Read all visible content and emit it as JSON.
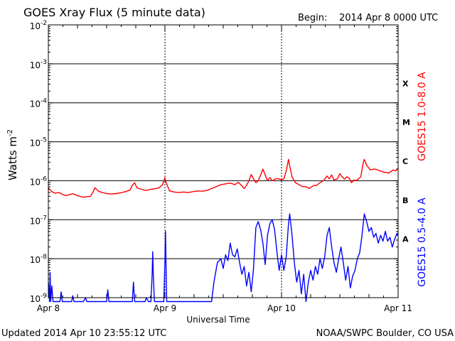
{
  "header": {
    "title": "GOES Xray Flux (5 minute data)",
    "begin_label": "Begin:",
    "begin_value": "2014 Apr 8 0000 UTC"
  },
  "footer": {
    "updated": "Updated 2014 Apr 10 23:55:12 UTC",
    "credit": "NOAA/SWPC Boulder, CO USA"
  },
  "colors": {
    "long_channel": "#ff0000",
    "short_channel": "#0000ff",
    "grid": "#000000",
    "background": "#ffffff"
  },
  "chart_data": {
    "type": "line",
    "title": "GOES Xray Flux (5 minute data)",
    "xlabel": "Universal Time",
    "ylabel": "Watts m",
    "ylabel_superscript": "-2",
    "yscale": "log",
    "ylim_exponent": [
      -9,
      -2
    ],
    "ytick_labels": [
      {
        "exp": -2,
        "base": "10",
        "sup": "-2"
      },
      {
        "exp": -3,
        "base": "10",
        "sup": "-3"
      },
      {
        "exp": -4,
        "base": "10",
        "sup": "-4"
      },
      {
        "exp": -5,
        "base": "10",
        "sup": "-5"
      },
      {
        "exp": -6,
        "base": "10",
        "sup": "-6"
      },
      {
        "exp": -7,
        "base": "10",
        "sup": "-7"
      },
      {
        "exp": -8,
        "base": "10",
        "sup": "-8"
      },
      {
        "exp": -9,
        "base": "10",
        "sup": "-9"
      }
    ],
    "xlim_days": [
      0,
      3
    ],
    "xtick_labels": [
      {
        "day": 0,
        "label": "Apr 8"
      },
      {
        "day": 1,
        "label": "Apr 9"
      },
      {
        "day": 2,
        "label": "Apr 10"
      },
      {
        "day": 3,
        "label": "Apr 11"
      }
    ],
    "flare_classes": [
      {
        "label": "X",
        "exp": -3.5
      },
      {
        "label": "M",
        "exp": -4.5
      },
      {
        "label": "C",
        "exp": -5.5
      },
      {
        "label": "B",
        "exp": -6.5
      },
      {
        "label": "A",
        "exp": -7.5
      }
    ],
    "series": [
      {
        "name": "GOES15 1.0-8.0 A",
        "color": "#ff0000",
        "points": [
          [
            0.0,
            -6.18
          ],
          [
            0.03,
            -6.28
          ],
          [
            0.06,
            -6.32
          ],
          [
            0.09,
            -6.3
          ],
          [
            0.12,
            -6.35
          ],
          [
            0.15,
            -6.38
          ],
          [
            0.18,
            -6.36
          ],
          [
            0.21,
            -6.33
          ],
          [
            0.24,
            -6.37
          ],
          [
            0.27,
            -6.4
          ],
          [
            0.3,
            -6.42
          ],
          [
            0.33,
            -6.41
          ],
          [
            0.36,
            -6.4
          ],
          [
            0.38,
            -6.31
          ],
          [
            0.4,
            -6.18
          ],
          [
            0.43,
            -6.27
          ],
          [
            0.46,
            -6.3
          ],
          [
            0.5,
            -6.33
          ],
          [
            0.54,
            -6.34
          ],
          [
            0.58,
            -6.33
          ],
          [
            0.62,
            -6.31
          ],
          [
            0.66,
            -6.28
          ],
          [
            0.7,
            -6.24
          ],
          [
            0.72,
            -6.12
          ],
          [
            0.74,
            -6.05
          ],
          [
            0.76,
            -6.18
          ],
          [
            0.8,
            -6.22
          ],
          [
            0.84,
            -6.25
          ],
          [
            0.88,
            -6.22
          ],
          [
            0.92,
            -6.2
          ],
          [
            0.95,
            -6.18
          ],
          [
            0.98,
            -6.1
          ],
          [
            1.0,
            -5.92
          ],
          [
            1.01,
            -6.05
          ],
          [
            1.04,
            -6.26
          ],
          [
            1.08,
            -6.29
          ],
          [
            1.12,
            -6.3
          ],
          [
            1.16,
            -6.29
          ],
          [
            1.2,
            -6.3
          ],
          [
            1.24,
            -6.28
          ],
          [
            1.28,
            -6.26
          ],
          [
            1.32,
            -6.27
          ],
          [
            1.36,
            -6.25
          ],
          [
            1.4,
            -6.2
          ],
          [
            1.44,
            -6.15
          ],
          [
            1.48,
            -6.1
          ],
          [
            1.52,
            -6.08
          ],
          [
            1.56,
            -6.06
          ],
          [
            1.6,
            -6.1
          ],
          [
            1.63,
            -6.04
          ],
          [
            1.66,
            -6.13
          ],
          [
            1.68,
            -6.2
          ],
          [
            1.7,
            -6.12
          ],
          [
            1.72,
            -6.0
          ],
          [
            1.74,
            -5.84
          ],
          [
            1.76,
            -5.95
          ],
          [
            1.78,
            -6.05
          ],
          [
            1.8,
            -6.0
          ],
          [
            1.82,
            -5.86
          ],
          [
            1.84,
            -5.7
          ],
          [
            1.86,
            -5.85
          ],
          [
            1.88,
            -6.0
          ],
          [
            1.9,
            -5.92
          ],
          [
            1.92,
            -6.0
          ],
          [
            1.95,
            -5.95
          ],
          [
            1.98,
            -5.95
          ],
          [
            2.0,
            -5.98
          ],
          [
            2.02,
            -5.95
          ],
          [
            2.04,
            -5.75
          ],
          [
            2.06,
            -5.45
          ],
          [
            2.07,
            -5.62
          ],
          [
            2.09,
            -5.9
          ],
          [
            2.12,
            -6.05
          ],
          [
            2.15,
            -6.1
          ],
          [
            2.18,
            -6.15
          ],
          [
            2.21,
            -6.15
          ],
          [
            2.24,
            -6.2
          ],
          [
            2.26,
            -6.15
          ],
          [
            2.28,
            -6.12
          ],
          [
            2.3,
            -6.12
          ],
          [
            2.33,
            -6.05
          ],
          [
            2.36,
            -6.0
          ],
          [
            2.39,
            -5.88
          ],
          [
            2.41,
            -5.95
          ],
          [
            2.43,
            -5.85
          ],
          [
            2.45,
            -5.98
          ],
          [
            2.48,
            -5.95
          ],
          [
            2.5,
            -5.82
          ],
          [
            2.52,
            -5.9
          ],
          [
            2.54,
            -5.96
          ],
          [
            2.56,
            -5.9
          ],
          [
            2.58,
            -5.93
          ],
          [
            2.6,
            -6.05
          ],
          [
            2.62,
            -5.98
          ],
          [
            2.64,
            -6.0
          ],
          [
            2.66,
            -5.95
          ],
          [
            2.68,
            -5.9
          ],
          [
            2.7,
            -5.55
          ],
          [
            2.71,
            -5.45
          ],
          [
            2.73,
            -5.6
          ],
          [
            2.76,
            -5.72
          ],
          [
            2.8,
            -5.7
          ],
          [
            2.84,
            -5.74
          ],
          [
            2.88,
            -5.78
          ],
          [
            2.92,
            -5.8
          ],
          [
            2.96,
            -5.72
          ],
          [
            2.98,
            -5.75
          ],
          [
            3.0,
            -5.68
          ]
        ]
      },
      {
        "name": "GOES15 0.5-4.0 A",
        "color": "#0000ff",
        "points": [
          [
            0.0,
            -8.6
          ],
          [
            0.01,
            -9.1
          ],
          [
            0.015,
            -8.35
          ],
          [
            0.02,
            -9.1
          ],
          [
            0.03,
            -8.7
          ],
          [
            0.04,
            -9.1
          ],
          [
            0.1,
            -9.1
          ],
          [
            0.11,
            -8.85
          ],
          [
            0.12,
            -9.1
          ],
          [
            0.2,
            -9.1
          ],
          [
            0.21,
            -8.95
          ],
          [
            0.22,
            -9.1
          ],
          [
            0.3,
            -9.1
          ],
          [
            0.32,
            -9.0
          ],
          [
            0.33,
            -9.1
          ],
          [
            0.5,
            -9.1
          ],
          [
            0.51,
            -8.8
          ],
          [
            0.52,
            -9.1
          ],
          [
            0.72,
            -9.1
          ],
          [
            0.73,
            -8.6
          ],
          [
            0.74,
            -9.1
          ],
          [
            0.83,
            -9.1
          ],
          [
            0.84,
            -9.0
          ],
          [
            0.86,
            -9.1
          ],
          [
            0.88,
            -9.1
          ],
          [
            0.89,
            -8.4
          ],
          [
            0.895,
            -7.82
          ],
          [
            0.9,
            -8.4
          ],
          [
            0.91,
            -9.1
          ],
          [
            0.99,
            -9.1
          ],
          [
            1.0,
            -8.05
          ],
          [
            1.005,
            -7.3
          ],
          [
            1.01,
            -8.2
          ],
          [
            1.015,
            -9.1
          ],
          [
            1.4,
            -9.1
          ],
          [
            1.42,
            -8.6
          ],
          [
            1.45,
            -8.1
          ],
          [
            1.48,
            -8.0
          ],
          [
            1.5,
            -8.25
          ],
          [
            1.52,
            -7.9
          ],
          [
            1.54,
            -8.05
          ],
          [
            1.56,
            -7.6
          ],
          [
            1.58,
            -7.9
          ],
          [
            1.6,
            -7.95
          ],
          [
            1.62,
            -7.75
          ],
          [
            1.64,
            -8.1
          ],
          [
            1.66,
            -8.4
          ],
          [
            1.68,
            -8.2
          ],
          [
            1.7,
            -8.7
          ],
          [
            1.72,
            -8.35
          ],
          [
            1.74,
            -8.85
          ],
          [
            1.76,
            -8.25
          ],
          [
            1.78,
            -7.2
          ],
          [
            1.8,
            -7.05
          ],
          [
            1.82,
            -7.25
          ],
          [
            1.84,
            -7.6
          ],
          [
            1.86,
            -8.15
          ],
          [
            1.88,
            -7.4
          ],
          [
            1.9,
            -7.1
          ],
          [
            1.92,
            -7.0
          ],
          [
            1.94,
            -7.25
          ],
          [
            1.96,
            -7.8
          ],
          [
            1.98,
            -8.3
          ],
          [
            2.0,
            -7.9
          ],
          [
            2.02,
            -8.3
          ],
          [
            2.04,
            -7.95
          ],
          [
            2.06,
            -7.1
          ],
          [
            2.07,
            -6.85
          ],
          [
            2.09,
            -7.4
          ],
          [
            2.11,
            -8.1
          ],
          [
            2.13,
            -8.6
          ],
          [
            2.15,
            -8.3
          ],
          [
            2.17,
            -8.9
          ],
          [
            2.19,
            -8.4
          ],
          [
            2.21,
            -9.1
          ],
          [
            2.23,
            -8.6
          ],
          [
            2.25,
            -8.3
          ],
          [
            2.27,
            -8.55
          ],
          [
            2.29,
            -8.2
          ],
          [
            2.31,
            -8.4
          ],
          [
            2.33,
            -8.0
          ],
          [
            2.35,
            -8.25
          ],
          [
            2.37,
            -7.95
          ],
          [
            2.39,
            -7.4
          ],
          [
            2.41,
            -7.2
          ],
          [
            2.43,
            -7.7
          ],
          [
            2.45,
            -8.1
          ],
          [
            2.47,
            -8.35
          ],
          [
            2.49,
            -8.0
          ],
          [
            2.51,
            -7.7
          ],
          [
            2.53,
            -8.1
          ],
          [
            2.55,
            -8.55
          ],
          [
            2.57,
            -8.2
          ],
          [
            2.59,
            -8.75
          ],
          [
            2.61,
            -8.45
          ],
          [
            2.63,
            -8.3
          ],
          [
            2.65,
            -8.0
          ],
          [
            2.67,
            -7.85
          ],
          [
            2.69,
            -7.4
          ],
          [
            2.71,
            -6.85
          ],
          [
            2.73,
            -7.05
          ],
          [
            2.75,
            -7.3
          ],
          [
            2.77,
            -7.2
          ],
          [
            2.79,
            -7.45
          ],
          [
            2.81,
            -7.35
          ],
          [
            2.83,
            -7.6
          ],
          [
            2.85,
            -7.4
          ],
          [
            2.87,
            -7.55
          ],
          [
            2.89,
            -7.3
          ],
          [
            2.91,
            -7.55
          ],
          [
            2.93,
            -7.45
          ],
          [
            2.95,
            -7.7
          ],
          [
            2.97,
            -7.5
          ],
          [
            2.99,
            -7.35
          ],
          [
            3.0,
            -7.4
          ]
        ]
      }
    ]
  }
}
